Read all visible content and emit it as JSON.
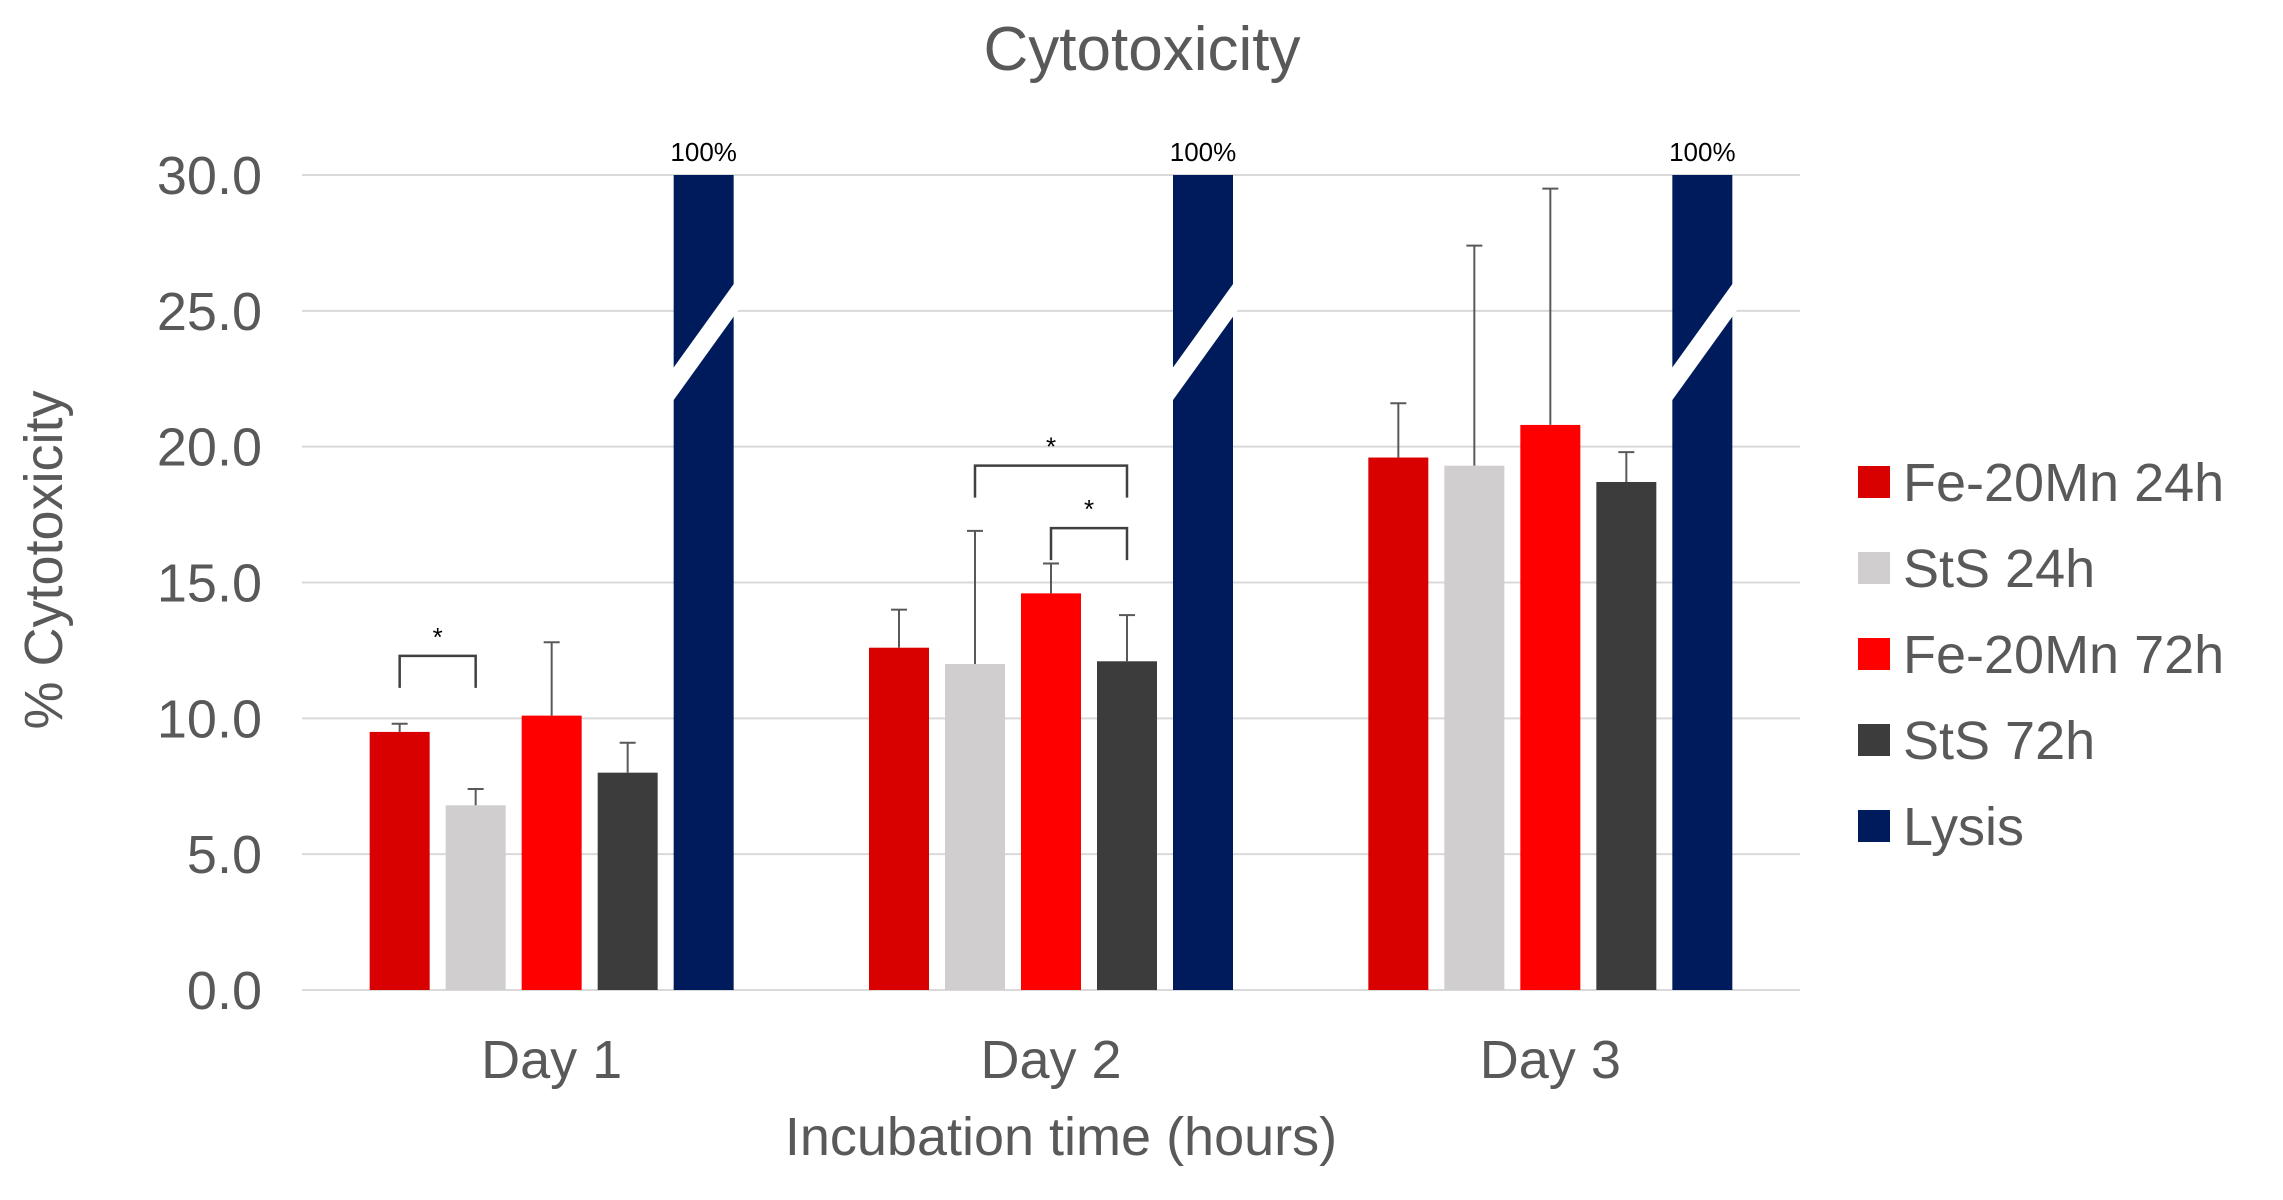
{
  "chart_data": {
    "type": "bar",
    "title": "Cytotoxicity",
    "xlabel": "Incubation time (hours)",
    "ylabel": "% Cytotoxicity",
    "ylim": [
      0,
      30
    ],
    "yticks": [
      "0.0",
      "5.0",
      "10.0",
      "15.0",
      "20.0",
      "25.0",
      "30.0"
    ],
    "categories": [
      "Day 1",
      "Day 2",
      "Day 3"
    ],
    "grid": true,
    "legend_position": "right",
    "series": [
      {
        "name": "Fe-20Mn 24h",
        "color": "#d90000",
        "values": [
          9.5,
          12.6,
          19.6
        ],
        "errors": [
          0.3,
          1.4,
          2.0
        ]
      },
      {
        "name": "StS 24h",
        "color": "#d0cece",
        "values": [
          6.8,
          12.0,
          19.3
        ],
        "errors": [
          0.6,
          4.9,
          8.1
        ]
      },
      {
        "name": "Fe-20Mn 72h",
        "color": "#ff0000",
        "values": [
          10.1,
          14.6,
          20.8
        ],
        "errors": [
          2.7,
          1.1,
          8.7
        ]
      },
      {
        "name": "StS 72h",
        "color": "#3c3c3c",
        "values": [
          8.0,
          12.1,
          18.7
        ],
        "errors": [
          1.1,
          1.7,
          1.1
        ]
      },
      {
        "name": "Lysis",
        "color": "#001b5c",
        "values": [
          100,
          100,
          100
        ],
        "errors": [
          0,
          0,
          0
        ]
      }
    ],
    "lysis_label": "100%",
    "significance": [
      {
        "category": "Day 1",
        "from_series": 0,
        "to_series": 1,
        "level": 12.3,
        "label": "*"
      },
      {
        "category": "Day 2",
        "from_series": 1,
        "to_series": 3,
        "level": 19.3,
        "label": "*"
      },
      {
        "category": "Day 2",
        "from_series": 2,
        "to_series": 3,
        "level": 17.0,
        "label": "*"
      }
    ]
  }
}
